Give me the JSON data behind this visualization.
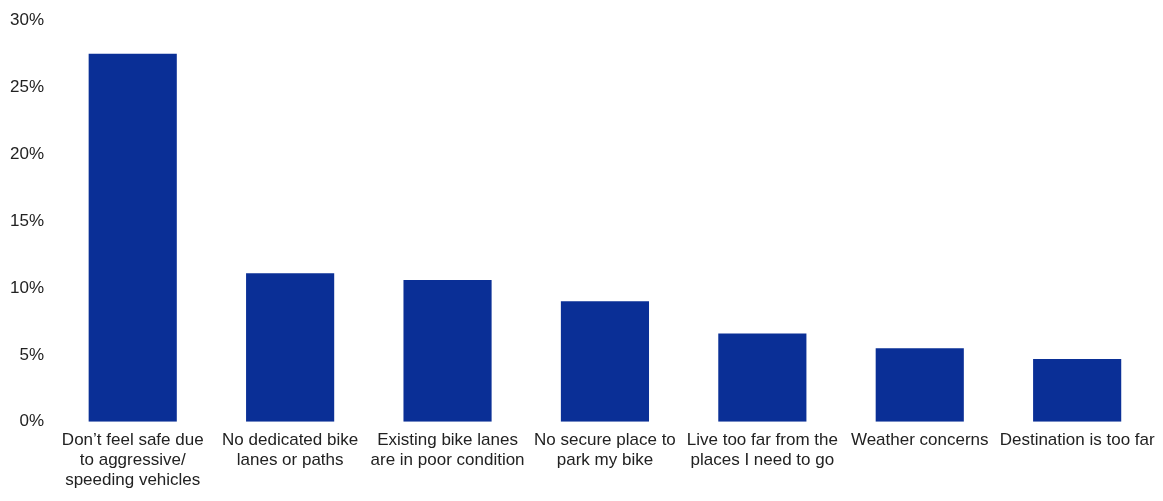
{
  "chart_data": {
    "type": "bar",
    "categories": [
      "Don’t feel safe due to aggressive/ speeding vehicles",
      "No dedicated bike lanes or paths",
      "Existing bike lanes are in poor condition",
      "No secure place to park my bike",
      "Live too far from the places I need to go",
      "Weather concerns",
      "Destination is too far"
    ],
    "values": [
      27.5,
      11.1,
      10.6,
      9.0,
      6.6,
      5.5,
      4.7
    ],
    "color": "#0a2f96",
    "ylim": [
      0,
      30
    ],
    "yticks": [
      {
        "value": 0,
        "label": "0%"
      },
      {
        "value": 5,
        "label": "5%"
      },
      {
        "value": 10,
        "label": "10%"
      },
      {
        "value": 15,
        "label": "15%"
      },
      {
        "value": 20,
        "label": "20%"
      },
      {
        "value": 25,
        "label": "25%"
      },
      {
        "value": 30,
        "label": "30%"
      }
    ],
    "grid": false,
    "legend": false
  }
}
